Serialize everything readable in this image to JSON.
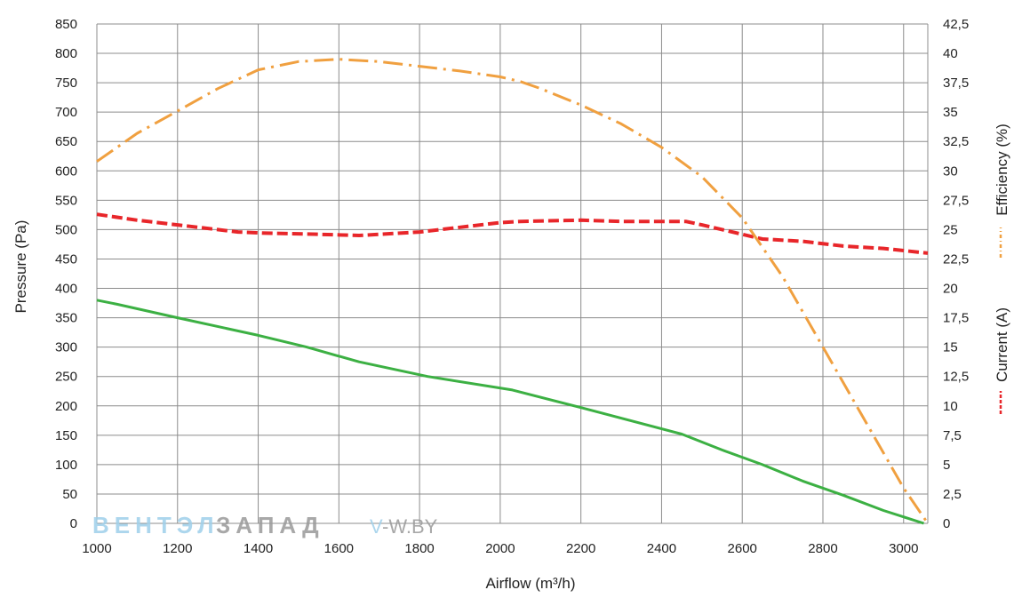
{
  "chart_data": {
    "type": "line",
    "xlabel": "Airflow (m³/h)",
    "ylabel": "Pressure (Pa)",
    "y2label_efficiency": "Efficiency (%)",
    "y2label_current": "Current (A)",
    "xlim": [
      1000,
      3060
    ],
    "ylim": [
      0,
      850
    ],
    "y2lim": [
      0,
      42.5
    ],
    "x_ticks": [
      "1000",
      "1200",
      "1400",
      "1600",
      "1800",
      "2000",
      "2200",
      "2400",
      "2600",
      "2800",
      "3000"
    ],
    "y_ticks": [
      "0",
      "50",
      "100",
      "150",
      "200",
      "250",
      "300",
      "350",
      "400",
      "450",
      "500",
      "550",
      "600",
      "650",
      "700",
      "750",
      "800",
      "850"
    ],
    "y2_ticks": [
      "0",
      "2,5",
      "5",
      "7,5",
      "10",
      "12,5",
      "15",
      "17,5",
      "20",
      "22,5",
      "25",
      "27,5",
      "30",
      "32,5",
      "35",
      "37,5",
      "40",
      "42,5"
    ],
    "grid": true,
    "series": [
      {
        "name": "Pressure",
        "color": "#3cb043",
        "style": "solid",
        "axis": "left",
        "x": [
          1000,
          1050,
          1200,
          1400,
          1520,
          1650,
          1820,
          2030,
          2200,
          2450,
          2550,
          2650,
          2750,
          2850,
          2950,
          3050
        ],
        "y": [
          380,
          373,
          350,
          320,
          300,
          275,
          250,
          227,
          197,
          152,
          125,
          100,
          72,
          48,
          22,
          0
        ]
      },
      {
        "name": "Current (A)",
        "color": "#e8262a",
        "style": "dashed",
        "axis": "right",
        "x": [
          1000,
          1100,
          1200,
          1350,
          1420,
          1550,
          1650,
          1800,
          1900,
          2000,
          2050,
          2200,
          2300,
          2460,
          2500,
          2600,
          2650,
          2750,
          2850,
          2950,
          3060
        ],
        "y": [
          26.3,
          25.8,
          25.4,
          24.8,
          24.7,
          24.6,
          24.5,
          24.8,
          25.2,
          25.6,
          25.7,
          25.8,
          25.7,
          25.7,
          25.4,
          24.6,
          24.2,
          24.0,
          23.6,
          23.4,
          23.0
        ]
      },
      {
        "name": "Efficiency (%)",
        "color": "#f0a040",
        "style": "dashdot",
        "axis": "right",
        "x": [
          1000,
          1100,
          1200,
          1300,
          1400,
          1500,
          1600,
          1700,
          1800,
          1900,
          2000,
          2050,
          2100,
          2200,
          2300,
          2400,
          2500,
          2600,
          2700,
          2800,
          2900,
          3000,
          3060
        ],
        "y": [
          30.8,
          33.2,
          35.1,
          37.0,
          38.6,
          39.3,
          39.5,
          39.3,
          38.9,
          38.5,
          38.0,
          37.6,
          37.0,
          35.6,
          34.0,
          32.0,
          29.5,
          26.0,
          21.0,
          15.0,
          9.0,
          3.0,
          0
        ]
      }
    ]
  },
  "watermark": {
    "part1": "ВЕНТЭЛ",
    "part2": "ЗАПАД",
    "site_prefix": "V",
    "site_rest": "-W.BY"
  }
}
